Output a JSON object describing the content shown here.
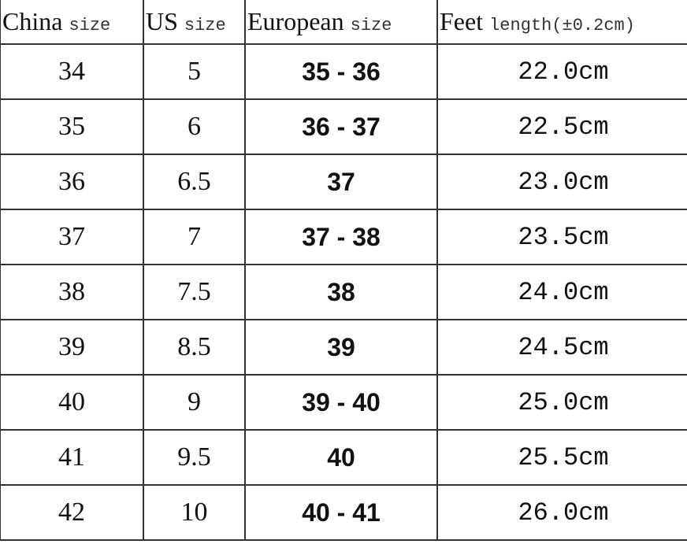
{
  "headers": [
    {
      "main": "China",
      "sub": "size"
    },
    {
      "main": "US",
      "sub": "size"
    },
    {
      "main": "European",
      "sub": "size"
    },
    {
      "main": "Feet",
      "sub": "length(±0.2cm)"
    }
  ],
  "rows": [
    {
      "china": "34",
      "us": "5",
      "eu": "35 - 36",
      "feet": "22.0cm"
    },
    {
      "china": "35",
      "us": "6",
      "eu": "36 - 37",
      "feet": "22.5cm"
    },
    {
      "china": "36",
      "us": "6.5",
      "eu": "37",
      "feet": "23.0cm"
    },
    {
      "china": "37",
      "us": "7",
      "eu": "37 - 38",
      "feet": "23.5cm"
    },
    {
      "china": "38",
      "us": "7.5",
      "eu": "38",
      "feet": "24.0cm"
    },
    {
      "china": "39",
      "us": "8.5",
      "eu": "39",
      "feet": "24.5cm"
    },
    {
      "china": "40",
      "us": "9",
      "eu": "39 - 40",
      "feet": "25.0cm"
    },
    {
      "china": "41",
      "us": "9.5",
      "eu": "40",
      "feet": "25.5cm"
    },
    {
      "china": "42",
      "us": "10",
      "eu": "40 - 41",
      "feet": "26.0cm"
    }
  ]
}
